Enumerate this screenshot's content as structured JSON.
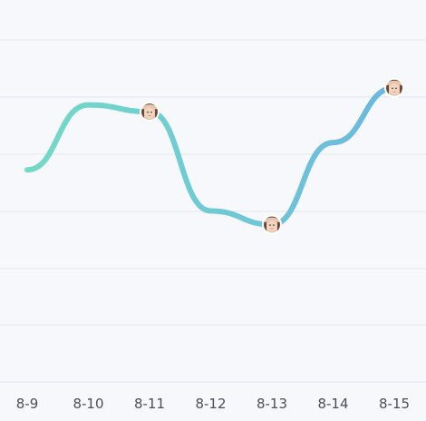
{
  "chart_data": {
    "type": "line",
    "categories": [
      "8-9",
      "8-10",
      "8-11",
      "8-12",
      "8-13",
      "8-14",
      "8-15"
    ],
    "values": [
      62,
      81,
      79,
      50,
      46,
      70,
      86
    ],
    "ylim": [
      0,
      100
    ],
    "grid": true,
    "legend": "none",
    "avatar_markers_at": [
      "8-11",
      "8-13",
      "8-15"
    ],
    "colors": {
      "line_start": "#74dcc3",
      "line_end": "#6ab4e2",
      "grid": "#e3e6ec",
      "background": "#f6f8fb",
      "tick_label": "#4a4f57"
    }
  }
}
